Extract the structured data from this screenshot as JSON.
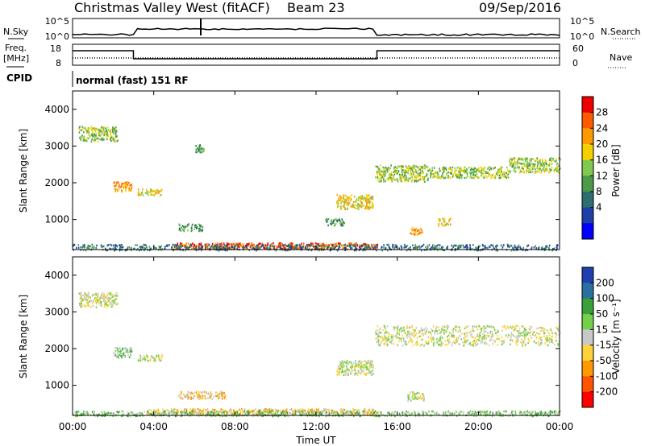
{
  "header": {
    "title": "Christmas Valley West (fitACF)",
    "beam": "Beam 23",
    "date": "09/Sep/2016"
  },
  "strips": {
    "nsky_label": "N.Sky",
    "nsearch_label": "N.Search",
    "nsky_ticks": [
      "10^5",
      "10^0"
    ],
    "nsearch_ticks": [
      "10^5",
      "10^0"
    ],
    "freq_label_1": "Freq.",
    "freq_label_2": "[MHz]",
    "freq_ticks": [
      "18",
      "8"
    ],
    "nave_label": "Nave",
    "nave_ticks": [
      "60",
      "0"
    ],
    "cpid_label": "CPID",
    "cpid_text": "normal (fast) 151 RF"
  },
  "colors": {
    "power": [
      "#0000ff",
      "#1f3fa8",
      "#2d6e70",
      "#4a9a4a",
      "#7fc94f",
      "#f5d000",
      "#ff9900",
      "#ff5a00",
      "#ee0000"
    ],
    "velocity": [
      "#ff0000",
      "#ff5500",
      "#ff9900",
      "#ffd23c",
      "#c8c8c8",
      "#74d04a",
      "#3aa03a",
      "#2a6fa0",
      "#1f3fb0"
    ]
  },
  "chart_data": [
    {
      "type": "heatmap",
      "panel": "power",
      "ylabel": "Slant Range [km]",
      "yticks": [
        "4000",
        "3000",
        "2000",
        "1000"
      ],
      "ylim": [
        180,
        4500
      ],
      "xlim": [
        0,
        24
      ],
      "colorbar_label": "Power [dB]",
      "colorbar_ticks": [
        "28",
        "24",
        "20",
        "16",
        "12",
        "8",
        "4"
      ],
      "blobs": [
        {
          "t0": 0.3,
          "t1": 2.2,
          "r0": 3150,
          "r1": 3550,
          "level": 4
        },
        {
          "t0": 2.0,
          "t1": 2.9,
          "r0": 1780,
          "r1": 2050,
          "level": 6
        },
        {
          "t0": 3.2,
          "t1": 4.4,
          "r0": 1680,
          "r1": 1850,
          "level": 5
        },
        {
          "t0": 5.2,
          "t1": 6.4,
          "r0": 700,
          "r1": 900,
          "level": 3
        },
        {
          "t0": 6.0,
          "t1": 6.5,
          "r0": 2850,
          "r1": 3050,
          "level": 3
        },
        {
          "t0": 13.0,
          "t1": 14.8,
          "r0": 1300,
          "r1": 1700,
          "level": 5
        },
        {
          "t0": 12.4,
          "t1": 13.4,
          "r0": 850,
          "r1": 1050,
          "level": 3
        },
        {
          "t0": 14.9,
          "t1": 17.5,
          "r0": 2050,
          "r1": 2500,
          "level": 4
        },
        {
          "t0": 17.5,
          "t1": 21.5,
          "r0": 2150,
          "r1": 2450,
          "level": 4
        },
        {
          "t0": 21.5,
          "t1": 24.0,
          "r0": 2300,
          "r1": 2700,
          "level": 4
        },
        {
          "t0": 16.6,
          "t1": 17.2,
          "r0": 600,
          "r1": 800,
          "level": 6
        },
        {
          "t0": 18.0,
          "t1": 18.6,
          "r0": 850,
          "r1": 1050,
          "level": 5
        },
        {
          "t0": 5.0,
          "t1": 15.0,
          "r0": 200,
          "r1": 380,
          "level": 7
        },
        {
          "t0": 0.0,
          "t1": 24.0,
          "r0": 180,
          "r1": 340,
          "level": 2
        }
      ]
    },
    {
      "type": "heatmap",
      "panel": "velocity",
      "ylabel": "Slant Range [km]",
      "yticks": [
        "4000",
        "3000",
        "2000",
        "1000"
      ],
      "ylim": [
        180,
        4500
      ],
      "xlim": [
        0,
        24
      ],
      "xticks": [
        "00:00",
        "04:00",
        "08:00",
        "12:00",
        "16:00",
        "20:00",
        "00:00"
      ],
      "xlabel": "Time UT",
      "colorbar_label": "Velocity [m s⁻¹]",
      "colorbar_ticks": [
        "200",
        "100",
        "50",
        "15",
        "-15",
        "-50",
        "-100",
        "-200"
      ],
      "blobs": [
        {
          "t0": 0.3,
          "t1": 2.2,
          "r0": 3150,
          "r1": 3550,
          "level": 4
        },
        {
          "t0": 2.0,
          "t1": 2.9,
          "r0": 1780,
          "r1": 2050,
          "level": 5
        },
        {
          "t0": 3.2,
          "t1": 4.4,
          "r0": 1680,
          "r1": 1850,
          "level": 4
        },
        {
          "t0": 5.2,
          "t1": 7.5,
          "r0": 650,
          "r1": 850,
          "level": 3
        },
        {
          "t0": 13.0,
          "t1": 14.8,
          "r0": 1300,
          "r1": 1700,
          "level": 4
        },
        {
          "t0": 14.9,
          "t1": 24.0,
          "r0": 2100,
          "r1": 2650,
          "level": 4
        },
        {
          "t0": 16.5,
          "t1": 17.3,
          "r0": 600,
          "r1": 850,
          "level": 4
        },
        {
          "t0": 3.5,
          "t1": 15.0,
          "r0": 200,
          "r1": 380,
          "level": 3
        },
        {
          "t0": 0.0,
          "t1": 24.0,
          "r0": 180,
          "r1": 320,
          "level": 5
        }
      ]
    }
  ]
}
